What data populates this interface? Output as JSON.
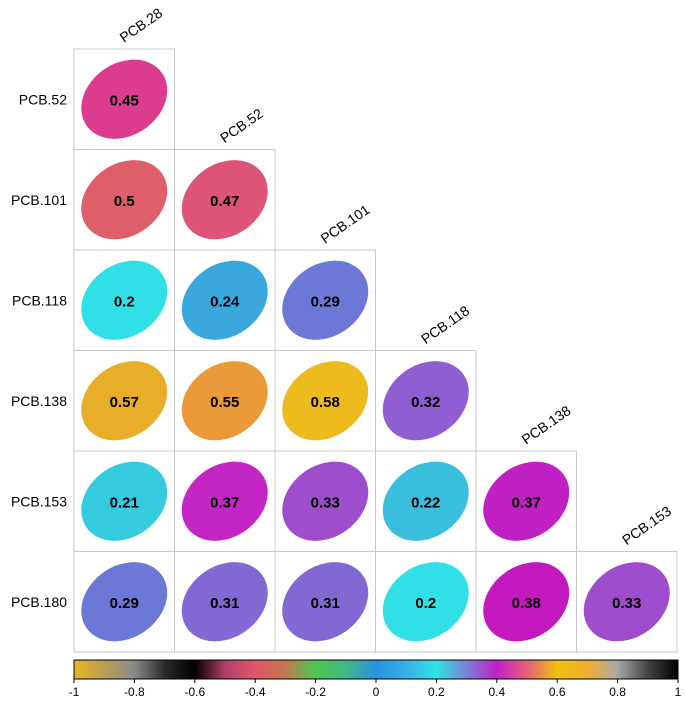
{
  "chart_data": {
    "type": "heatmap",
    "subtype": "correlation-ellipse-lower-triangle",
    "row_labels": [
      "PCB.52",
      "PCB.101",
      "PCB.118",
      "PCB.138",
      "PCB.153",
      "PCB.180"
    ],
    "col_labels": [
      "PCB.28",
      "PCB.52",
      "PCB.101",
      "PCB.118",
      "PCB.138",
      "PCB.153"
    ],
    "values": [
      [
        0.45
      ],
      [
        0.5,
        0.47
      ],
      [
        0.2,
        0.24,
        0.29
      ],
      [
        0.57,
        0.55,
        0.58,
        0.32
      ],
      [
        0.21,
        0.37,
        0.33,
        0.22,
        0.37
      ],
      [
        0.29,
        0.31,
        0.31,
        0.2,
        0.38,
        0.33
      ]
    ],
    "colorbar": {
      "min": -1,
      "max": 1,
      "ticks": [
        "-1",
        "-0.8",
        "-0.6",
        "-0.4",
        "-0.2",
        "0",
        "0.2",
        "0.4",
        "0.6",
        "0.8",
        "1"
      ],
      "stops": [
        {
          "v": -1.0,
          "c": "#E8B422"
        },
        {
          "v": -0.8,
          "c": "#8A8A8A"
        },
        {
          "v": -0.7,
          "c": "#2A2A2A"
        },
        {
          "v": -0.6,
          "c": "#000000"
        },
        {
          "v": -0.5,
          "c": "#B0406A"
        },
        {
          "v": -0.4,
          "c": "#E0566A"
        },
        {
          "v": -0.3,
          "c": "#C07850"
        },
        {
          "v": -0.2,
          "c": "#4CC850"
        },
        {
          "v": -0.1,
          "c": "#40B888"
        },
        {
          "v": 0.0,
          "c": "#2A90E0"
        },
        {
          "v": 0.1,
          "c": "#3AB0E8"
        },
        {
          "v": 0.2,
          "c": "#2EE4E4"
        },
        {
          "v": 0.3,
          "c": "#7A80D8"
        },
        {
          "v": 0.4,
          "c": "#C020C8"
        },
        {
          "v": 0.5,
          "c": "#E4607A"
        },
        {
          "v": 0.6,
          "c": "#F0C010"
        },
        {
          "v": 0.7,
          "c": "#F0B030"
        },
        {
          "v": 0.8,
          "c": "#A8A8A8"
        },
        {
          "v": 0.9,
          "c": "#444444"
        },
        {
          "v": 1.0,
          "c": "#000000"
        }
      ]
    },
    "cell_colors": [
      [
        "#DC3C8E"
      ],
      [
        "#DD5F6A",
        "#DE5478"
      ],
      [
        "#30E0E6",
        "#3AA8DC",
        "#6C78D6"
      ],
      [
        "#E8AE2A",
        "#EA9A38",
        "#EEBB1E",
        "#8E5ED2"
      ],
      [
        "#35CCE0",
        "#C426C4",
        "#9E4ECC",
        "#3ABEDE",
        "#C020C4"
      ],
      [
        "#6C78D6",
        "#8268D2",
        "#8268D2",
        "#30E0E6",
        "#C218BE",
        "#9E4ECC"
      ]
    ]
  }
}
